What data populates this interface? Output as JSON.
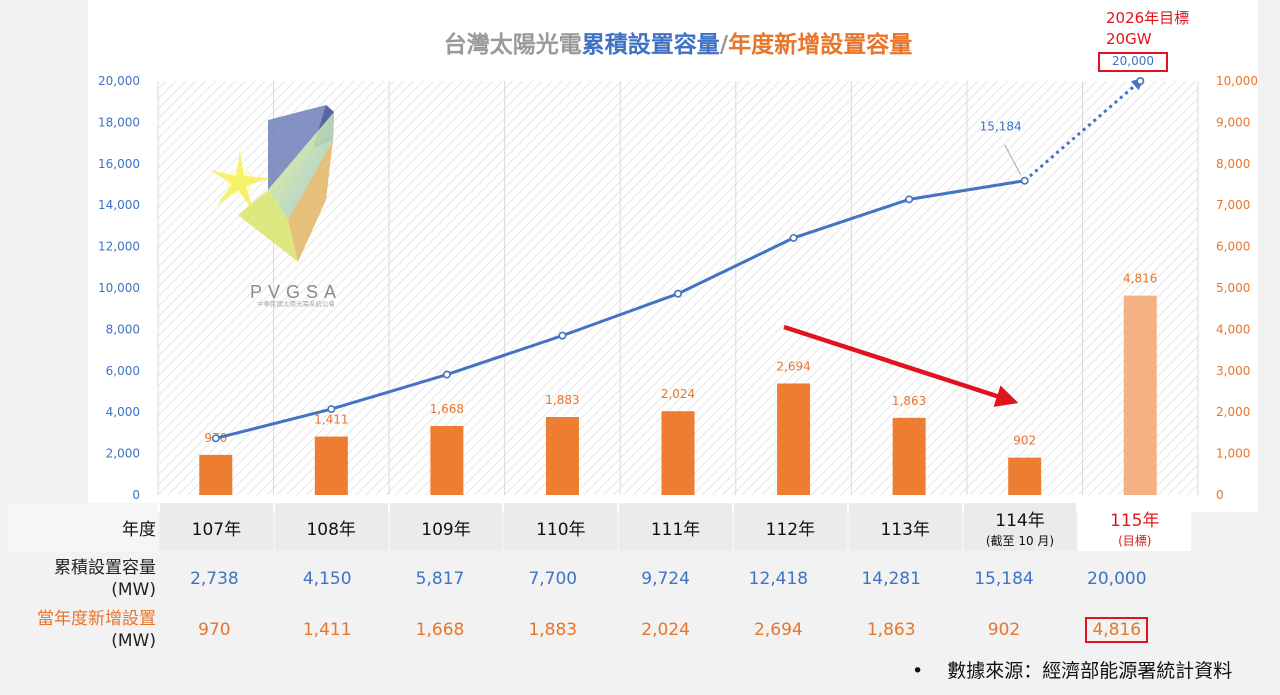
{
  "chart_data": {
    "type": "bar+line",
    "title_parts": [
      {
        "text": "台灣太陽光電",
        "color": "#999999"
      },
      {
        "text": "累積設置容量",
        "color": "#3f72c4"
      },
      {
        "text": "/",
        "color": "#999999"
      },
      {
        "text": "年度新增設置容量",
        "color": "#e8752a"
      }
    ],
    "categories": [
      "107年",
      "108年",
      "109年",
      "110年",
      "111年",
      "112年",
      "113年",
      "114年",
      "115年"
    ],
    "series": [
      {
        "type": "line",
        "axis": "left",
        "color": "#4472c4",
        "values": [
          2738,
          4150,
          5817,
          7700,
          9724,
          12418,
          14281,
          15184,
          20000
        ],
        "dashed_from_index": 7
      },
      {
        "type": "bar",
        "axis": "right",
        "color": "#ed7d31",
        "highlight_color": "#f4b183",
        "values": [
          970,
          1411,
          1668,
          1883,
          2024,
          2694,
          1863,
          902,
          4816
        ]
      }
    ],
    "line_labels": [
      {
        "index": 7,
        "text": "15,184"
      }
    ],
    "bar_labels": [
      "970",
      "1,411",
      "1,668",
      "1,883",
      "2,024",
      "2,694",
      "1,863",
      "902",
      "4,816"
    ],
    "y_left": {
      "min": 0,
      "max": 20000,
      "ticks": [
        "0",
        "2,000",
        "4,000",
        "6,000",
        "8,000",
        "10,000",
        "12,000",
        "14,000",
        "16,000",
        "18,000",
        "20,000"
      ]
    },
    "y_right": {
      "min": 0,
      "max": 10000,
      "ticks": [
        "0",
        "1,000",
        "2,000",
        "3,000",
        "4,000",
        "5,000",
        "6,000",
        "7,000",
        "8,000",
        "9,000",
        "10,000"
      ]
    },
    "grid": "vertical",
    "logo": {
      "name": "PVGSA",
      "subtitle": "中華民國太陽光電系統公會"
    },
    "target_note": {
      "line1": "2026年目標",
      "line2": "20GW",
      "value_label": "20,000"
    },
    "annotations": [
      {
        "type": "arrow",
        "color": "#e0141e",
        "meaning": "declining annual additions"
      }
    ]
  },
  "table": {
    "year_header": "年度",
    "years": [
      {
        "label": "107年"
      },
      {
        "label": "108年"
      },
      {
        "label": "109年"
      },
      {
        "label": "110年"
      },
      {
        "label": "111年"
      },
      {
        "label": "112年"
      },
      {
        "label": "113年"
      },
      {
        "label": "114年",
        "sub": "(截至 10 月)"
      },
      {
        "label": "115年",
        "sub": "(目標)"
      }
    ],
    "cumulative_header_1": "累積設置容量",
    "cumulative_header_2": "(MW)",
    "cumulative": [
      "2,738",
      "4,150",
      "5,817",
      "7,700",
      "9,724",
      "12,418",
      "14,281",
      "15,184",
      "20,000"
    ],
    "annual_header_1": "當年度新增設置",
    "annual_header_2": "(MW)",
    "annual": [
      "970",
      "1,411",
      "1,668",
      "1,883",
      "2,024",
      "2,694",
      "1,863",
      "902",
      "4,816"
    ]
  },
  "source": {
    "bullet": "•",
    "text": "數據來源：經濟部能源署統計資料"
  }
}
